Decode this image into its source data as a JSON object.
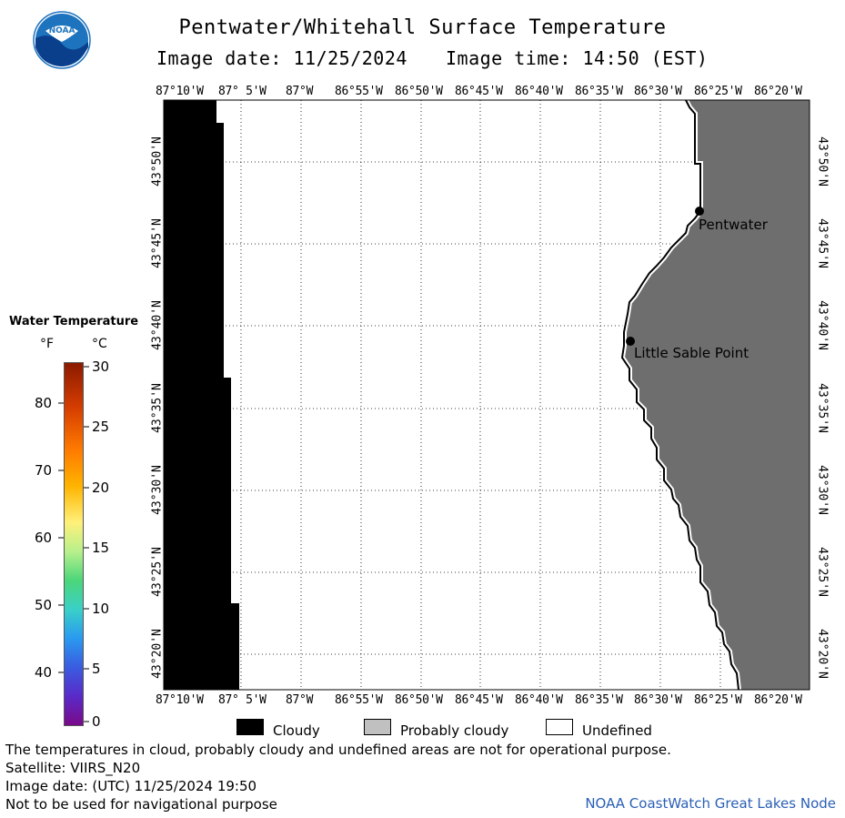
{
  "header": {
    "title": "Pentwater/Whitehall Surface Temperature",
    "image_date_label": "Image date: 11/25/2024",
    "image_time_label": "Image time: 14:50 (EST)"
  },
  "logo": {
    "name": "noaa-logo",
    "text": "NOAA"
  },
  "map": {
    "lon_labels": [
      "87°10'W",
      "87° 5'W",
      "87°W",
      "86°55'W",
      "86°50'W",
      "86°45'W",
      "86°40'W",
      "86°35'W",
      "86°30'W",
      "86°25'W",
      "86°20'W"
    ],
    "lat_labels": [
      "43°50'N",
      "43°45'N",
      "43°40'N",
      "43°35'N",
      "43°30'N",
      "43°25'N",
      "43°20'N"
    ],
    "places": [
      {
        "name": "Pentwater",
        "lon": "86°27'W",
        "lat": "43°46.7'N"
      },
      {
        "name": "Little Sable Point",
        "lon": "86°32.4'W",
        "lat": "43°39'N"
      }
    ],
    "colors": {
      "cloud": "#000000",
      "land": "#6e6e6e",
      "undefined": "#ffffff",
      "probably_cloudy": "#c0c0c0",
      "shoreline": "#000000"
    }
  },
  "legend": {
    "title": "Water Temperature",
    "unit_f": "°F",
    "unit_c": "°C",
    "f_ticks": [
      "80",
      "70",
      "60",
      "50",
      "40"
    ],
    "c_ticks": [
      "30",
      "25",
      "20",
      "15",
      "10",
      "5",
      "0"
    ],
    "color_stops": [
      "#8b1a00",
      "#d43c00",
      "#ff7a00",
      "#ffb400",
      "#fff07a",
      "#b8f08c",
      "#4cd67a",
      "#3ad0c8",
      "#2a9af0",
      "#3a5ce0",
      "#5a2ac8",
      "#7a0a8a"
    ]
  },
  "key": {
    "cloudy": "Cloudy",
    "probably_cloudy": "Probably cloudy",
    "undefined": "Undefined"
  },
  "footer": {
    "line1": "The temperatures in cloud, probably cloudy and undefined areas are not for operational purpose.",
    "line2": "Satellite: VIIRS_N20",
    "line3": "Image date: (UTC) 11/25/2024  19:50",
    "line4": "Not to be used for navigational purpose",
    "credit": "NOAA CoastWatch Great Lakes Node"
  }
}
